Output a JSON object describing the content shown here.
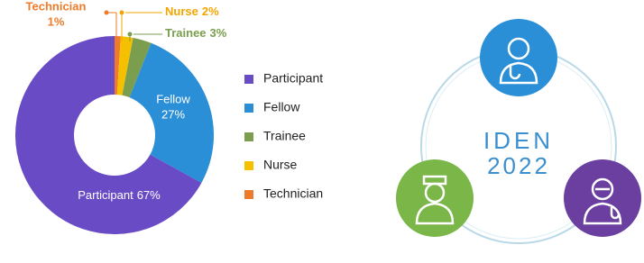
{
  "chart_data": {
    "type": "pie",
    "donut": true,
    "legend": "right",
    "categories": [
      "Participant",
      "Fellow",
      "Trainee",
      "Nurse",
      "Technician"
    ],
    "values": [
      67,
      27,
      3,
      2,
      1
    ],
    "value_labels": [
      "67%",
      "27%",
      "3%",
      "2%",
      "1%"
    ],
    "colors": [
      "#6a4bc6",
      "#2a8fd6",
      "#7a9e4e",
      "#f5c000",
      "#ee7b2a"
    ]
  },
  "logo": {
    "line1": "IDEN",
    "line2": "2022"
  }
}
